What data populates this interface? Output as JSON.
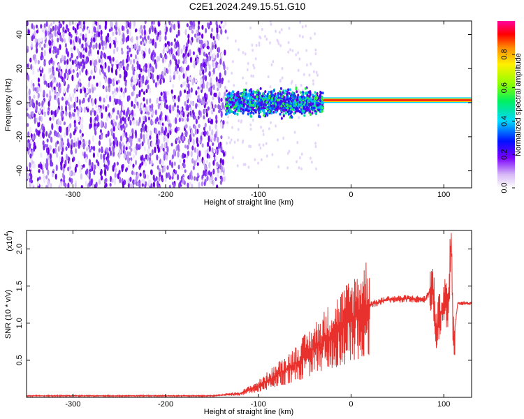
{
  "title": "C2E1.2024.249.15.51.G10",
  "colors": {
    "snr_line": "#e8302c",
    "spectrogram_low": "#ffffff",
    "spectrogram_mid": "#6a00e8",
    "background": "#ffffff"
  },
  "chart_data": [
    {
      "type": "heatmap",
      "title": "C2E1.2024.249.15.51.G10",
      "xlabel": "Height of straight line (km)",
      "ylabel": "Frequency (Hz)",
      "xlim": [
        -350,
        130
      ],
      "ylim": [
        -50,
        48
      ],
      "xticks": [
        -300,
        -200,
        -100,
        0,
        100
      ],
      "yticks": [
        -40,
        -20,
        0,
        20,
        40
      ],
      "colorbar": {
        "label": "Normalized spectral amplitude",
        "range": [
          0,
          1
        ],
        "ticks": [
          0.0,
          0.2,
          0.4,
          0.6,
          0.8
        ],
        "tick_labels": [
          "0.0",
          "0.2",
          "0.4",
          "0.6",
          "0.8"
        ]
      },
      "regions": [
        {
          "x_range": [
            -350,
            -135
          ],
          "freq_range": [
            -50,
            48
          ],
          "amplitude": 0.15,
          "pattern": "broadband noise"
        },
        {
          "x_range": [
            -135,
            -30
          ],
          "freq_range": [
            -10,
            10
          ],
          "amplitude": 0.4,
          "pattern": "concentrated band"
        },
        {
          "x_range": [
            -30,
            130
          ],
          "freq_range": [
            0,
            3
          ],
          "amplitude": 0.95,
          "pattern": "narrow line"
        }
      ]
    },
    {
      "type": "line",
      "xlabel": "Height of straight line (km)",
      "ylabel": "SNR (10 * v/v)",
      "multiplier_label": "(x10",
      "multiplier_exp": "4",
      "xlim": [
        -350,
        130
      ],
      "ylim": [
        0,
        2.25
      ],
      "xticks": [
        -300,
        -200,
        -100,
        0,
        100
      ],
      "yticks": [
        0.5,
        1.0,
        1.5,
        2.0
      ],
      "ytick_labels": [
        "0.5",
        "1.0",
        "1.5",
        "2.0"
      ],
      "series": [
        {
          "x": [
            -350,
            -300,
            -250,
            -200,
            -150,
            -120,
            -100,
            -80,
            -60,
            -40,
            -20,
            0,
            20,
            40,
            60,
            80,
            88,
            92,
            100,
            105,
            108,
            110,
            115,
            130
          ],
          "y": [
            0.02,
            0.02,
            0.02,
            0.02,
            0.02,
            0.05,
            0.15,
            0.3,
            0.45,
            0.65,
            0.85,
            1.05,
            1.25,
            1.32,
            1.33,
            1.32,
            1.5,
            0.9,
            1.3,
            1.2,
            2.25,
            0.7,
            1.27,
            1.27
          ]
        }
      ]
    }
  ]
}
